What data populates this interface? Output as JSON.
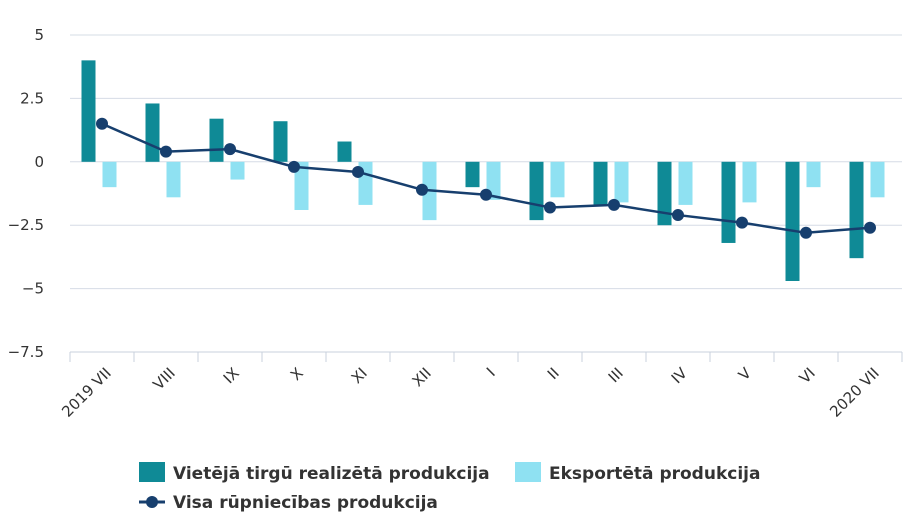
{
  "chart_data": {
    "type": "bar",
    "categories": [
      "2019 VII",
      "VIII",
      "IX",
      "X",
      "XI",
      "XII",
      "I",
      "II",
      "III",
      "IV",
      "V",
      "VI",
      "2020 VII"
    ],
    "series": [
      {
        "name": "Vietējā tirgū realizētā produkcija",
        "type": "bar",
        "color": "#0f8a96",
        "values": [
          4.0,
          2.3,
          1.7,
          1.6,
          0.8,
          0.0,
          -1.0,
          -2.3,
          -1.7,
          -2.5,
          -3.2,
          -4.7,
          -3.8
        ]
      },
      {
        "name": "Eksportētā produkcija",
        "type": "bar",
        "color": "#8fe1f2",
        "values": [
          -1.0,
          -1.4,
          -0.7,
          -1.9,
          -1.7,
          -2.3,
          -1.5,
          -1.4,
          -1.6,
          -1.7,
          -1.6,
          -1.0,
          -1.4
        ]
      },
      {
        "name": "Visa rūpniecības produkcija",
        "type": "line",
        "color": "#173f6e",
        "values": [
          1.5,
          0.4,
          0.5,
          -0.2,
          -0.4,
          -1.1,
          -1.3,
          -1.8,
          -1.7,
          -2.1,
          -2.4,
          -2.8,
          -2.6
        ]
      }
    ],
    "y_ticks": [
      "5",
      "2.5",
      "0",
      "−2.5",
      "−5",
      "−7.5"
    ],
    "y_tick_values": [
      5,
      2.5,
      0,
      -2.5,
      -5,
      -7.5
    ],
    "ylim": [
      -7.5,
      5
    ],
    "grid": true,
    "legend_position": "bottom"
  }
}
